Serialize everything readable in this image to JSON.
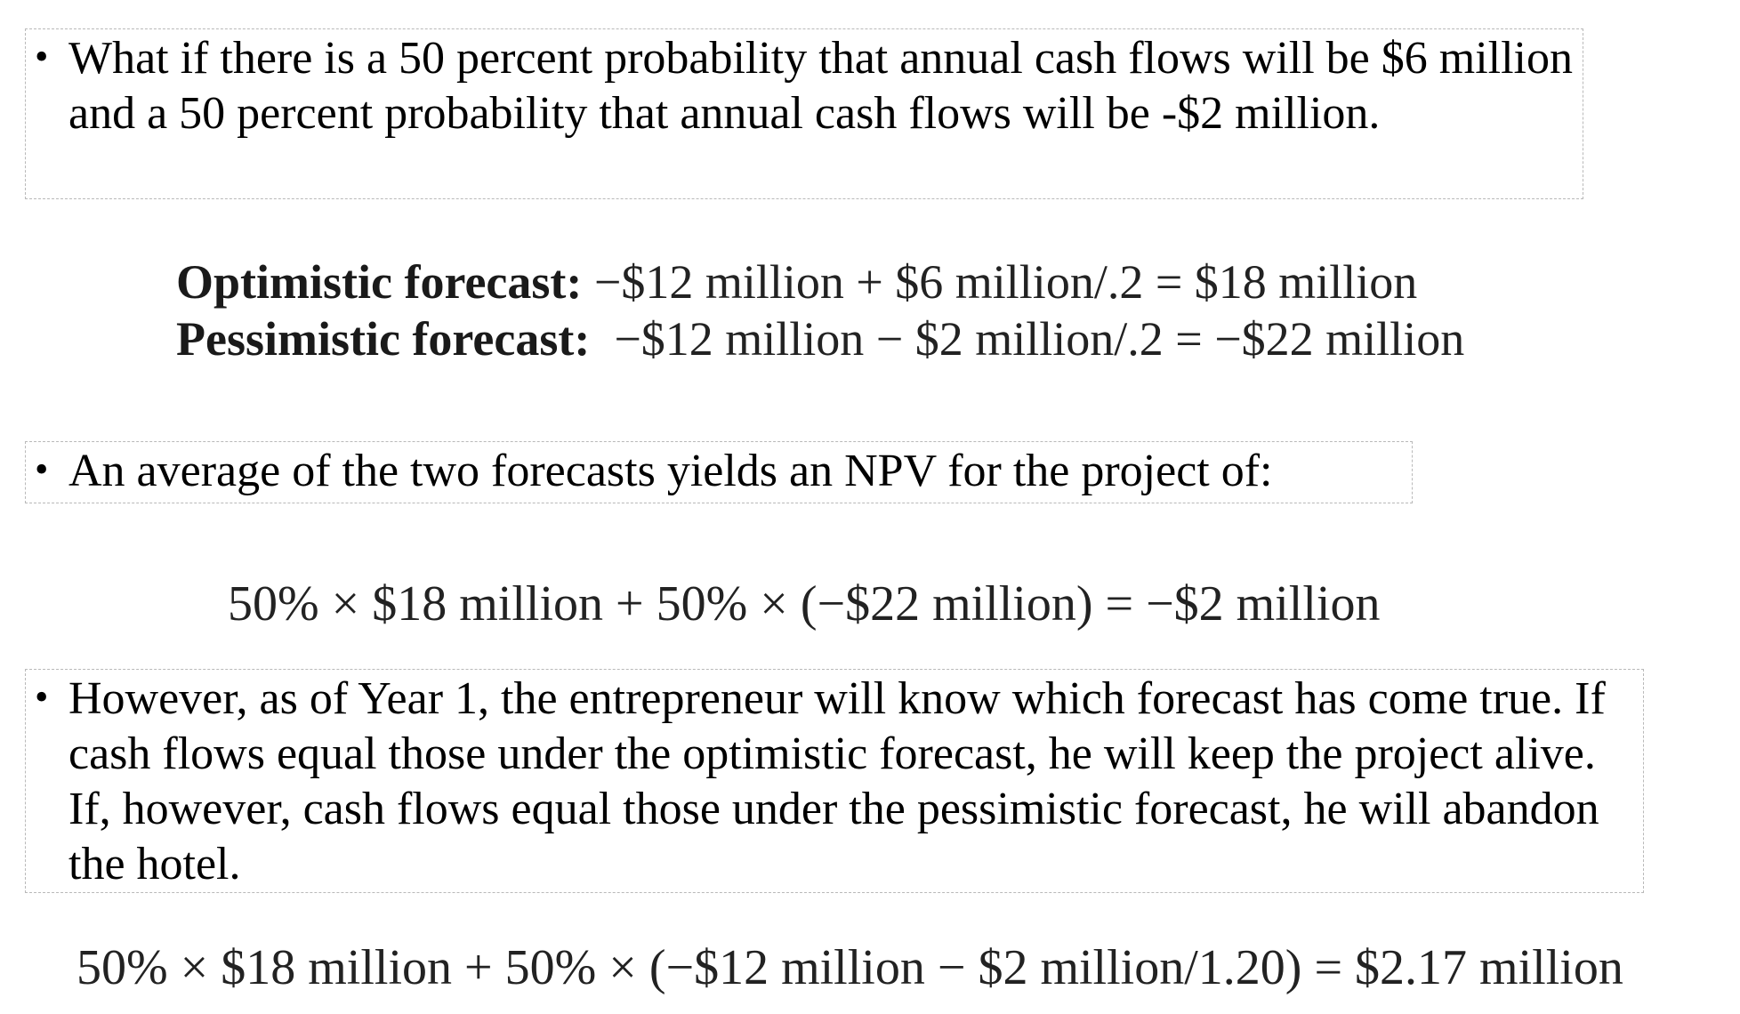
{
  "bullets": [
    {
      "text": "What if there is a 50 percent probability that annual cash flows will be $6 million and a 50 percent probability that annual cash flows will be -$2 million."
    },
    {
      "text": "An average of the two forecasts yields an NPV for the project of:"
    },
    {
      "text": "However, as of Year 1, the entrepreneur will know which forecast has come true. If cash flows equal those under the optimistic forecast, he will keep the project alive. If, however, cash flows equal those under the pessimistic forecast, he will abandon the hotel."
    }
  ],
  "bullet_symbol": "•",
  "formulas": {
    "optimistic": {
      "label": "Optimistic forecast:",
      "expression": " −$12 million + $6 million/.2 = $18 million"
    },
    "pessimistic": {
      "label": "Pessimistic forecast:",
      "expression": "  −$12 million − $2 million/.2 = −$22 million"
    },
    "average": "50% × $18 million + 50% × (−$22 million) = −$2 million",
    "final": "50% × $18 million + 50% × (−$12 million − $2 million/1.20) = $2.17 million"
  }
}
